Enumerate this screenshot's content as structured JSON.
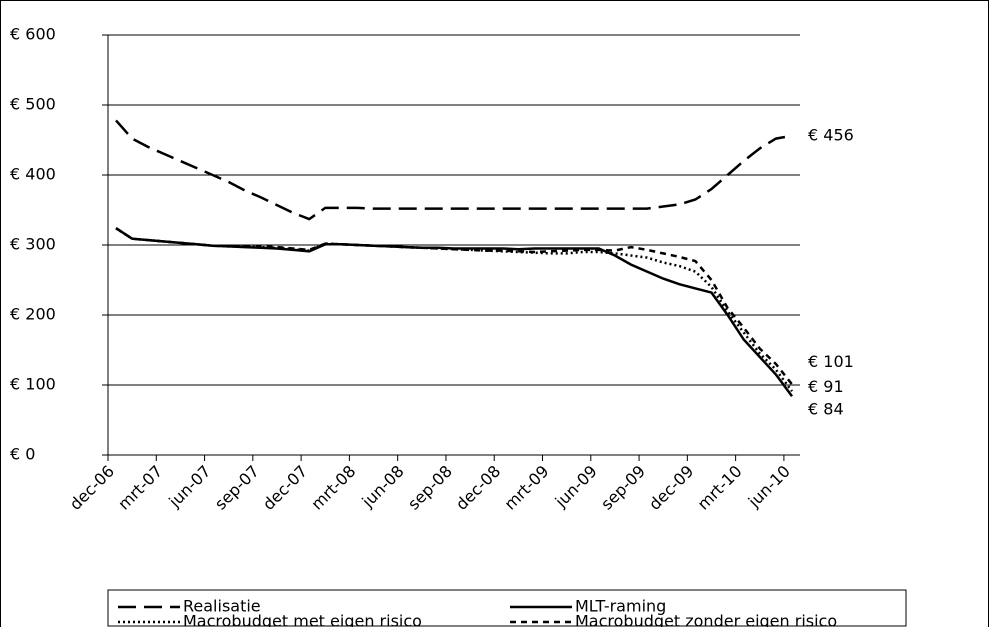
{
  "chart_data": {
    "type": "line",
    "categories": [
      "dec-06",
      null,
      null,
      "mrt-07",
      null,
      null,
      "jun-07",
      null,
      null,
      "sep-07",
      null,
      null,
      "dec-07",
      null,
      null,
      "mrt-08",
      null,
      null,
      "jun-08",
      null,
      null,
      "sep-08",
      null,
      null,
      "dec-08",
      null,
      null,
      "mrt-09",
      null,
      null,
      "jun-09",
      null,
      null,
      "sep-09",
      null,
      null,
      "dec-09",
      null,
      null,
      "mrt-10",
      null,
      null,
      "jun-10"
    ],
    "ylim": [
      0,
      600
    ],
    "yticks": [
      {
        "value": 0,
        "label": "€ 0"
      },
      {
        "value": 100,
        "label": "€ 100"
      },
      {
        "value": 200,
        "label": "€ 200"
      },
      {
        "value": 300,
        "label": "€ 300"
      },
      {
        "value": 400,
        "label": "€ 400"
      },
      {
        "value": 500,
        "label": "€ 500"
      },
      {
        "value": 600,
        "label": "€ 600"
      }
    ],
    "grid": true,
    "legend": "bottom",
    "series": [
      {
        "name": "Realisatie",
        "color": "#000000",
        "dash": "18,8",
        "values": [
          478,
          452,
          440,
          430,
          420,
          410,
          400,
          390,
          378,
          368,
          357,
          346,
          337,
          353,
          353,
          353,
          352,
          352,
          352,
          352,
          352,
          352,
          352,
          352,
          352,
          352,
          352,
          352,
          352,
          352,
          352,
          352,
          352,
          352,
          355,
          358,
          365,
          380,
          400,
          420,
          438,
          452,
          456
        ],
        "value_labels": [
          null,
          null,
          null,
          null,
          null,
          null,
          null,
          null,
          null,
          null,
          null,
          null,
          null,
          null,
          null,
          null,
          null,
          null,
          null,
          null,
          null,
          null,
          null,
          null,
          null,
          null,
          null,
          null,
          null,
          null,
          null,
          null,
          null,
          null,
          null,
          null,
          null,
          null,
          null,
          null,
          null,
          null,
          "€ 456"
        ]
      },
      {
        "name": "MLT-raming",
        "color": "#000000",
        "dash": "none",
        "values": [
          324,
          309,
          307,
          305,
          303,
          301,
          299,
          298,
          297,
          296,
          295,
          293,
          291,
          301,
          301,
          300,
          299,
          298,
          297,
          296,
          296,
          295,
          295,
          295,
          295,
          294,
          295,
          295,
          295,
          295,
          295,
          285,
          272,
          262,
          252,
          244,
          238,
          232,
          200,
          165,
          140,
          115,
          84
        ],
        "value_labels": [
          null,
          null,
          null,
          null,
          null,
          null,
          null,
          null,
          null,
          null,
          null,
          null,
          null,
          null,
          null,
          null,
          null,
          null,
          null,
          null,
          null,
          null,
          null,
          null,
          null,
          null,
          null,
          null,
          null,
          null,
          null,
          null,
          null,
          null,
          null,
          null,
          null,
          null,
          null,
          null,
          null,
          null,
          "€ 84"
        ]
      },
      {
        "name": "Macrobudget met eigen risico",
        "color": "#000000",
        "dash": "2,3",
        "values": [
          324,
          309,
          307,
          305,
          303,
          301,
          299,
          298,
          298,
          297,
          296,
          294,
          292,
          302,
          301,
          300,
          299,
          298,
          297,
          296,
          295,
          294,
          293,
          292,
          291,
          290,
          289,
          288,
          288,
          290,
          290,
          288,
          285,
          282,
          275,
          270,
          262,
          240,
          205,
          175,
          145,
          122,
          91
        ],
        "value_labels": [
          null,
          null,
          null,
          null,
          null,
          null,
          null,
          null,
          null,
          null,
          null,
          null,
          null,
          null,
          null,
          null,
          null,
          null,
          null,
          null,
          null,
          null,
          null,
          null,
          null,
          null,
          null,
          null,
          null,
          null,
          null,
          null,
          null,
          null,
          null,
          null,
          null,
          null,
          null,
          null,
          null,
          null,
          "€ 91"
        ]
      },
      {
        "name": "Macrobudget zonder eigen risico",
        "color": "#000000",
        "dash": "6,5",
        "values": [
          324,
          309,
          307,
          305,
          303,
          301,
          299,
          298,
          298,
          298,
          297,
          295,
          293,
          302,
          301,
          300,
          299,
          298,
          297,
          296,
          295,
          294,
          293,
          292,
          292,
          291,
          290,
          291,
          292,
          293,
          293,
          292,
          297,
          293,
          288,
          283,
          277,
          250,
          210,
          182,
          152,
          130,
          101
        ],
        "value_labels": [
          null,
          null,
          null,
          null,
          null,
          null,
          null,
          null,
          null,
          null,
          null,
          null,
          null,
          null,
          null,
          null,
          null,
          null,
          null,
          null,
          null,
          null,
          null,
          null,
          null,
          null,
          null,
          null,
          null,
          null,
          null,
          null,
          null,
          null,
          null,
          null,
          null,
          null,
          null,
          null,
          null,
          null,
          "€ 101"
        ]
      }
    ]
  }
}
